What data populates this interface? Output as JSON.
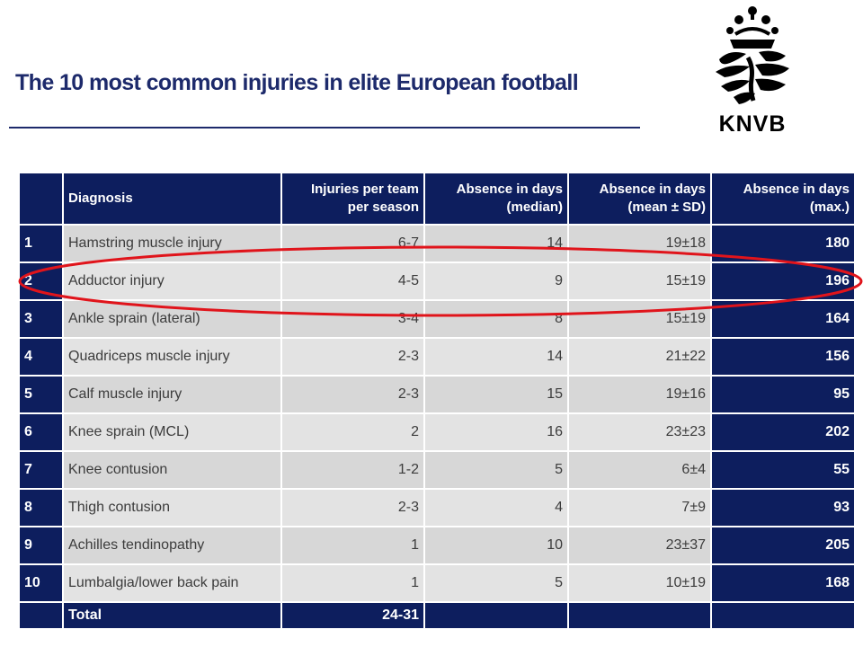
{
  "slide": {
    "title": "The 10 most common injuries in elite European football",
    "logo_text": "KNVB"
  },
  "table": {
    "headers": {
      "rank": "",
      "diagnosis": "Diagnosis",
      "injuries": "Injuries per team per season",
      "median": "Absence in days (median)",
      "mean": "Absence in days (mean ± SD)",
      "max": "Absence in days (max.)"
    },
    "rows": [
      {
        "rank": "1",
        "diagnosis": "Hamstring muscle injury",
        "injuries": "6-7",
        "median": "14",
        "mean": "19±18",
        "max": "180"
      },
      {
        "rank": "2",
        "diagnosis": "Adductor injury",
        "injuries": "4-5",
        "median": "9",
        "mean": "15±19",
        "max": "196"
      },
      {
        "rank": "3",
        "diagnosis": "Ankle sprain (lateral)",
        "injuries": "3-4",
        "median": "8",
        "mean": "15±19",
        "max": "164"
      },
      {
        "rank": "4",
        "diagnosis": "Quadriceps muscle injury",
        "injuries": "2-3",
        "median": "14",
        "mean": "21±22",
        "max": "156"
      },
      {
        "rank": "5",
        "diagnosis": "Calf muscle injury",
        "injuries": "2-3",
        "median": "15",
        "mean": "19±16",
        "max": "95"
      },
      {
        "rank": "6",
        "diagnosis": "Knee sprain (MCL)",
        "injuries": "2",
        "median": "16",
        "mean": "23±23",
        "max": "202"
      },
      {
        "rank": "7",
        "diagnosis": "Knee contusion",
        "injuries": "1-2",
        "median": "5",
        "mean": "6±4",
        "max": "55"
      },
      {
        "rank": "8",
        "diagnosis": "Thigh contusion",
        "injuries": "2-3",
        "median": "4",
        "mean": "7±9",
        "max": "93"
      },
      {
        "rank": "9",
        "diagnosis": "Achilles tendinopathy",
        "injuries": "1",
        "median": "10",
        "mean": "23±37",
        "max": "205"
      },
      {
        "rank": "10",
        "diagnosis": "Lumbalgia/lower back pain",
        "injuries": "1",
        "median": "5",
        "mean": "10±19",
        "max": "168"
      }
    ],
    "total": {
      "label": "Total",
      "injuries": "24-31"
    }
  },
  "colors": {
    "navy": "#0d1e5e",
    "title": "#1d2a6b",
    "cell_gray": "#d7d7d7",
    "highlight_ellipse": "#e0141b"
  },
  "highlight": {
    "row": "2",
    "diagnosis": "Adductor injury"
  }
}
